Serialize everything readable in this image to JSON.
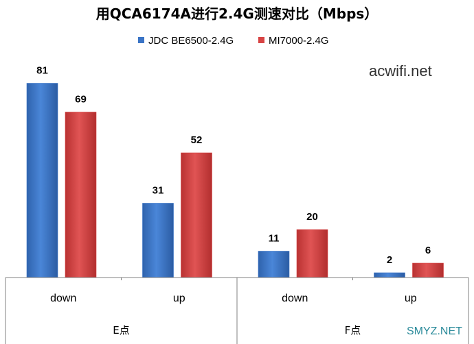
{
  "chart_data": {
    "type": "bar",
    "title": "用QCA6174A进行2.4G测速对比（Mbps）",
    "series": [
      {
        "name": "JDC BE6500-2.4G",
        "color": "#3a74c6",
        "values": [
          81,
          31,
          11,
          2
        ]
      },
      {
        "name": "MI7000-2.4G",
        "color": "#d84444",
        "values": [
          69,
          52,
          20,
          6
        ]
      }
    ],
    "categories": [
      "down",
      "up",
      "down",
      "up"
    ],
    "groups": [
      {
        "label": "E点",
        "categories": [
          "down",
          "up"
        ]
      },
      {
        "label": "F点",
        "categories": [
          "down",
          "up"
        ]
      }
    ],
    "ylim": [
      0,
      90
    ],
    "grid": false,
    "legend_position": "top"
  },
  "watermarks": {
    "top_right": "acwifi.net",
    "bottom_right": "SMYZ.NET"
  }
}
